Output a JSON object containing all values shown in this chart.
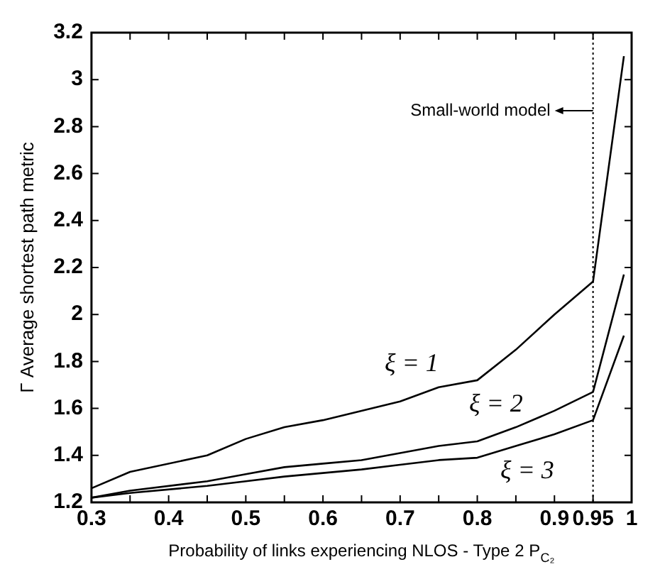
{
  "chart_data": {
    "type": "line",
    "xlabel": "Probability of links experiencing NLOS - Type 2 P$_{C₂}$",
    "ylabel": "Γ Average shortest path metric",
    "x": [
      0.3,
      0.35,
      0.45,
      0.5,
      0.55,
      0.6,
      0.65,
      0.7,
      0.75,
      0.8,
      0.85,
      0.9,
      0.95,
      0.99
    ],
    "series": [
      {
        "name": "ξ = 1",
        "color": "#000000",
        "values": [
          1.26,
          1.33,
          1.4,
          1.47,
          1.52,
          1.55,
          1.59,
          1.63,
          1.69,
          1.72,
          1.85,
          2.0,
          2.14,
          3.1
        ]
      },
      {
        "name": "ξ = 2",
        "color": "#000000",
        "values": [
          1.22,
          1.25,
          1.29,
          1.32,
          1.35,
          1.365,
          1.38,
          1.41,
          1.44,
          1.46,
          1.52,
          1.59,
          1.67,
          2.17
        ]
      },
      {
        "name": "ξ = 3",
        "color": "#000000",
        "values": [
          1.22,
          1.24,
          1.27,
          1.29,
          1.31,
          1.325,
          1.34,
          1.36,
          1.38,
          1.39,
          1.44,
          1.49,
          1.55,
          1.91
        ]
      }
    ],
    "ref_lines": [
      {
        "axis": "x",
        "value": 0.95,
        "label": "Small-world model",
        "line_style": "dotted",
        "color": "#000000"
      }
    ],
    "xlim": [
      0.3,
      1
    ],
    "xticks": [
      0.3,
      {
        "value": 0.35,
        "label": null
      },
      0.4,
      {
        "value": 0.45,
        "label": null
      },
      0.5,
      {
        "value": 0.55,
        "label": null
      },
      0.6,
      {
        "value": 0.65,
        "label": null
      },
      0.7,
      {
        "value": 0.75,
        "label": null
      },
      0.8,
      {
        "value": 0.85,
        "label": null
      },
      0.9,
      0.95,
      1
    ],
    "ylim": [
      1.2,
      3.2
    ],
    "yticks": [
      1.2,
      1.4,
      1.6,
      1.8,
      2,
      2.2,
      2.4,
      2.6,
      2.8,
      3,
      3.2
    ],
    "grid": false,
    "legend": false,
    "marker": "none",
    "line_style": "solid"
  }
}
